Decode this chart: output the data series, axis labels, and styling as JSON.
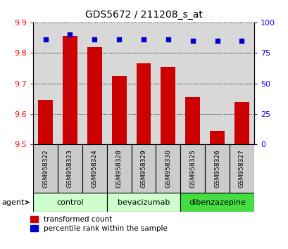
{
  "title": "GDS5672 / 211208_s_at",
  "samples": [
    "GSM958322",
    "GSM958323",
    "GSM958324",
    "GSM958328",
    "GSM958329",
    "GSM958330",
    "GSM958325",
    "GSM958326",
    "GSM958327"
  ],
  "bar_values": [
    9.645,
    9.855,
    9.82,
    9.725,
    9.765,
    9.755,
    9.655,
    9.545,
    9.64
  ],
  "percentile_values": [
    86,
    90,
    86,
    86,
    86,
    86,
    85,
    85,
    85
  ],
  "ymin": 9.5,
  "ymax": 9.9,
  "yticks": [
    9.5,
    9.6,
    9.7,
    9.8,
    9.9
  ],
  "right_yticks": [
    0,
    25,
    50,
    75,
    100
  ],
  "bar_color": "#cc0000",
  "dot_color": "#0000cc",
  "group_spans": [
    {
      "start": 0,
      "end": 2,
      "label": "control",
      "color": "#ccffcc"
    },
    {
      "start": 3,
      "end": 5,
      "label": "bevacizumab",
      "color": "#ccffcc"
    },
    {
      "start": 6,
      "end": 8,
      "label": "dibenzazepine",
      "color": "#44dd44"
    }
  ],
  "xlabel_agent": "agent",
  "legend_red": "transformed count",
  "legend_blue": "percentile rank within the sample",
  "background_color": "#ffffff",
  "plot_bg_color": "#d8d8d8",
  "sample_box_color": "#cccccc"
}
